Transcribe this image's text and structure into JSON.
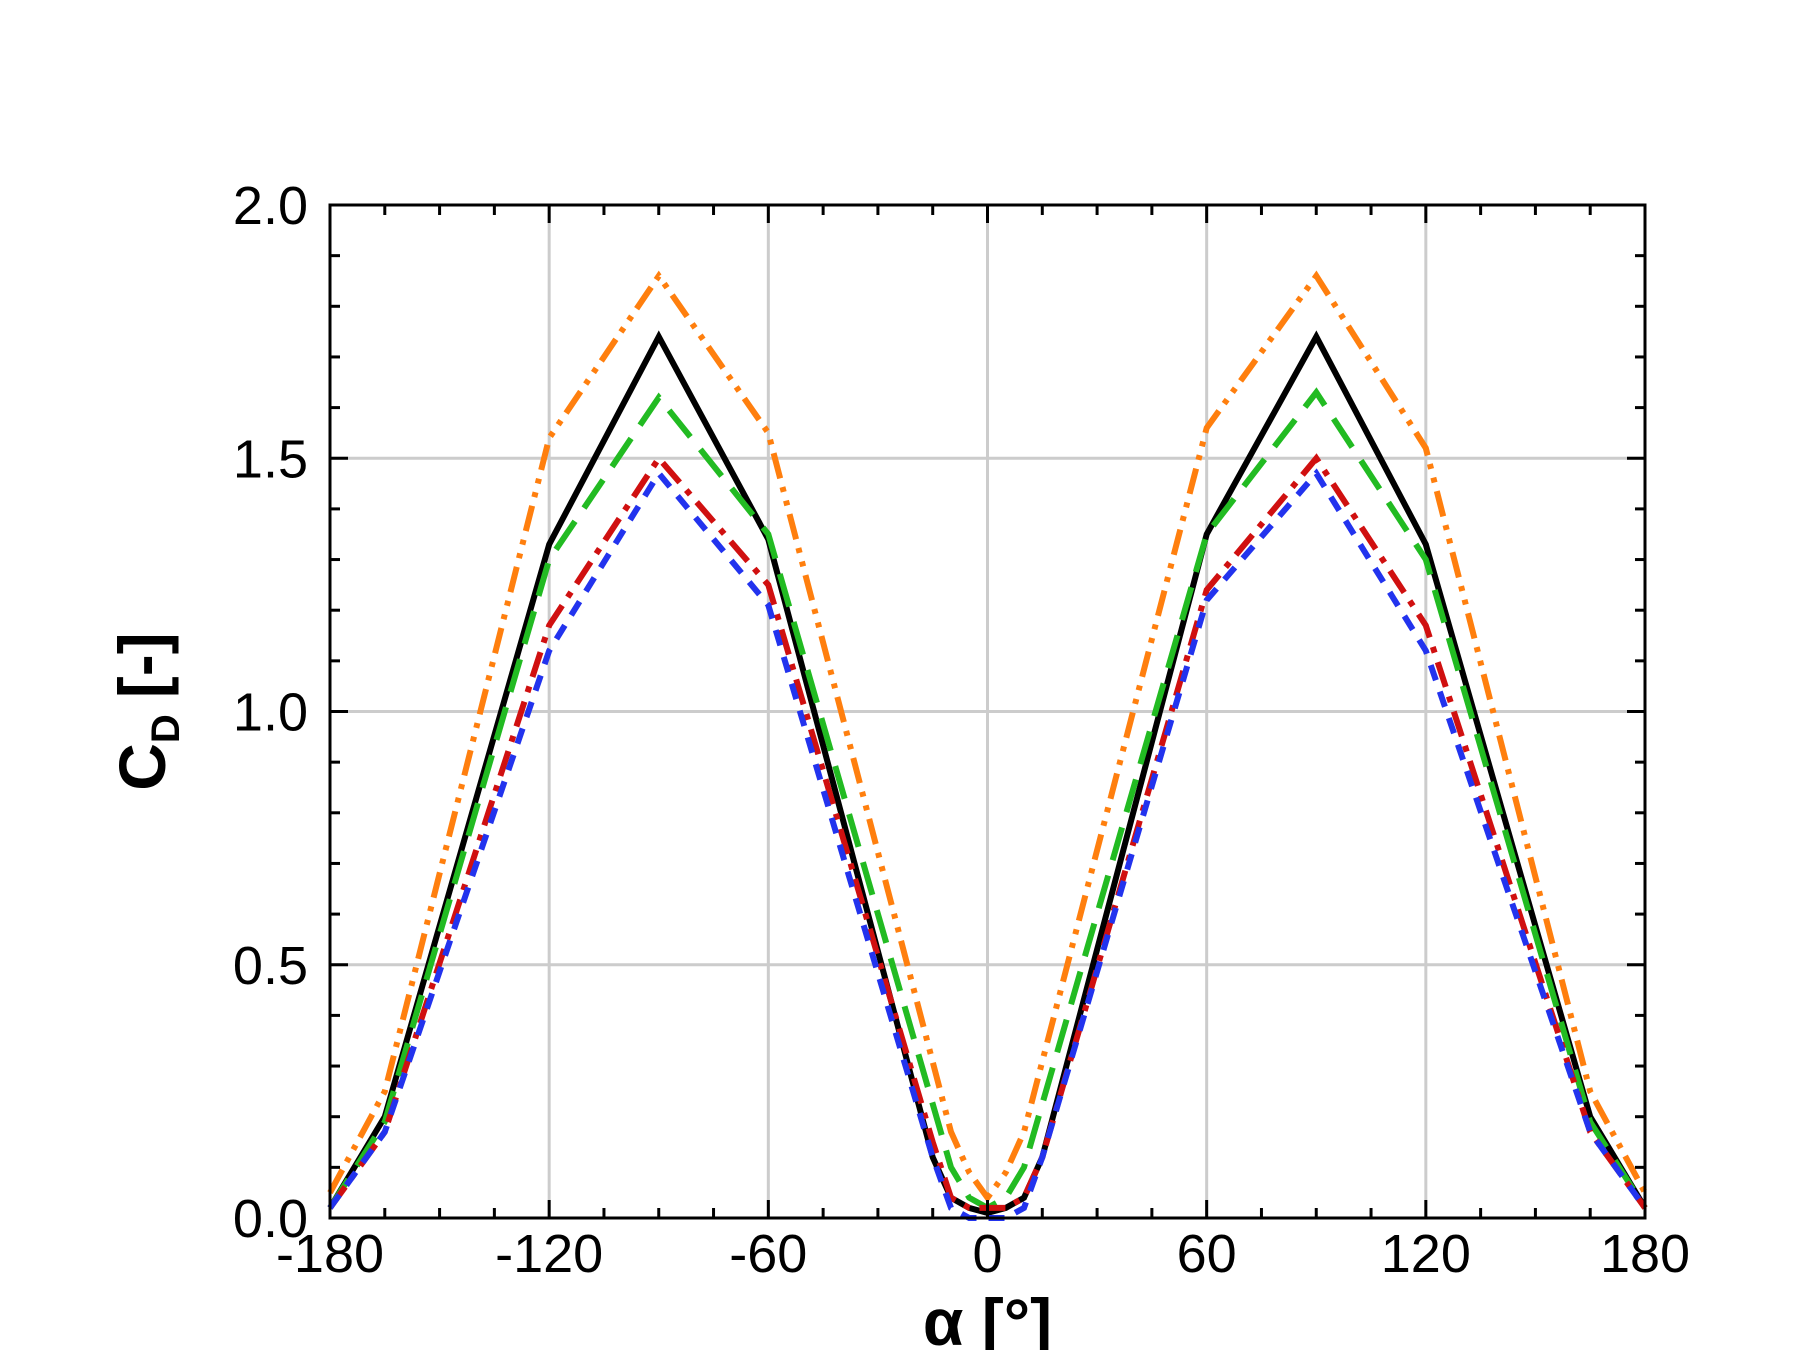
{
  "chart_data": {
    "type": "line",
    "title": "",
    "xlabel": "α [°]",
    "ylabel_main": "C",
    "ylabel_sub": "D",
    "ylabel_unit": "[-]",
    "xlim": [
      -180,
      180
    ],
    "ylim": [
      0,
      2
    ],
    "xticks": [
      -180,
      -120,
      -60,
      0,
      60,
      120,
      180
    ],
    "xtick_labels": [
      "-180",
      "-120",
      "-60",
      "0",
      "60",
      "120",
      "180"
    ],
    "yticks": [
      0,
      0.5,
      1.0,
      1.5,
      2.0
    ],
    "ytick_labels": [
      "0.0",
      "0.5",
      "1.0",
      "1.5",
      "2.0"
    ],
    "grid": true,
    "series": [
      {
        "color": "#ff7f0e",
        "style": "dash-dot-dot",
        "x": [
          -180,
          -165,
          -120,
          -90,
          -60,
          -10,
          -5,
          0,
          5,
          10,
          60,
          90,
          120,
          165,
          180
        ],
        "y": [
          0.05,
          0.25,
          1.54,
          1.86,
          1.55,
          0.17,
          0.09,
          0.04,
          0.09,
          0.17,
          1.56,
          1.86,
          1.52,
          0.25,
          0.05
        ]
      },
      {
        "color": "#000000",
        "style": "solid",
        "x": [
          -180,
          -165,
          -120,
          -90,
          -60,
          -15,
          -10,
          -5,
          0,
          5,
          10,
          15,
          60,
          90,
          120,
          165,
          180
        ],
        "y": [
          0.02,
          0.2,
          1.33,
          1.74,
          1.34,
          0.12,
          0.04,
          0.02,
          0.01,
          0.02,
          0.04,
          0.12,
          1.35,
          1.74,
          1.33,
          0.2,
          0.02
        ]
      },
      {
        "color": "#22bb22",
        "style": "long-dash",
        "x": [
          -180,
          -165,
          -120,
          -90,
          -60,
          -10,
          -5,
          0,
          5,
          10,
          60,
          90,
          120,
          165,
          180
        ],
        "y": [
          0.02,
          0.19,
          1.3,
          1.62,
          1.35,
          0.1,
          0.04,
          0.02,
          0.04,
          0.1,
          1.35,
          1.63,
          1.3,
          0.19,
          0.02
        ]
      },
      {
        "color": "#d01010",
        "style": "dash-dot",
        "x": [
          -180,
          -165,
          -120,
          -90,
          -60,
          -15,
          -10,
          -5,
          0,
          5,
          10,
          15,
          60,
          90,
          120,
          165,
          180
        ],
        "y": [
          0.02,
          0.17,
          1.17,
          1.5,
          1.25,
          0.15,
          0.04,
          0.02,
          0.02,
          0.02,
          0.04,
          0.12,
          1.24,
          1.5,
          1.17,
          0.17,
          0.02
        ]
      },
      {
        "color": "#2233ee",
        "style": "short-dash",
        "x": [
          -180,
          -165,
          -120,
          -90,
          -60,
          -15,
          -10,
          -5,
          0,
          5,
          10,
          15,
          60,
          90,
          120,
          165,
          180
        ],
        "y": [
          0.02,
          0.17,
          1.12,
          1.47,
          1.21,
          0.12,
          0.02,
          0.0,
          0.0,
          0.0,
          0.02,
          0.12,
          1.22,
          1.47,
          1.12,
          0.17,
          0.02
        ]
      }
    ]
  }
}
